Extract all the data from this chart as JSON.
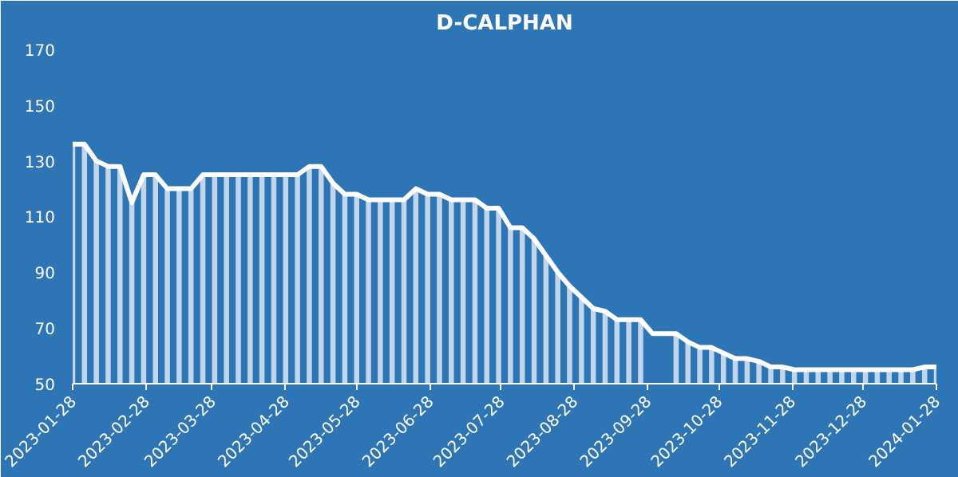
{
  "chart_data": {
    "type": "bar",
    "title": "D-CALPHAN",
    "x": [
      "2023-01-28",
      "2023-02-02",
      "2023-02-07",
      "2023-02-12",
      "2023-02-17",
      "2023-02-22",
      "2023-02-27",
      "2023-03-04",
      "2023-03-09",
      "2023-03-14",
      "2023-03-19",
      "2023-03-24",
      "2023-03-29",
      "2023-04-03",
      "2023-04-08",
      "2023-04-13",
      "2023-04-18",
      "2023-04-23",
      "2023-04-28",
      "2023-05-03",
      "2023-05-08",
      "2023-05-13",
      "2023-05-18",
      "2023-05-23",
      "2023-05-28",
      "2023-06-02",
      "2023-06-07",
      "2023-06-12",
      "2023-06-17",
      "2023-06-22",
      "2023-06-27",
      "2023-07-02",
      "2023-07-07",
      "2023-07-12",
      "2023-07-17",
      "2023-07-22",
      "2023-07-27",
      "2023-08-01",
      "2023-08-06",
      "2023-08-11",
      "2023-08-16",
      "2023-08-21",
      "2023-08-26",
      "2023-08-31",
      "2023-09-05",
      "2023-09-10",
      "2023-09-15",
      "2023-09-20",
      "2023-09-25",
      "2023-09-30",
      "2023-10-05",
      "2023-10-10",
      "2023-10-15",
      "2023-10-20",
      "2023-10-25",
      "2023-10-30",
      "2023-11-04",
      "2023-11-09",
      "2023-11-14",
      "2023-11-19",
      "2023-11-24",
      "2023-11-29",
      "2023-12-04",
      "2023-12-09",
      "2023-12-14",
      "2023-12-19",
      "2023-12-24",
      "2023-12-29",
      "2024-01-03",
      "2024-01-08",
      "2024-01-13",
      "2024-01-18",
      "2024-01-23",
      "2024-01-28"
    ],
    "series": [
      {
        "color": "#dce8f5",
        "values": [
          136,
          136,
          130,
          128,
          128,
          115,
          125,
          125,
          120,
          120,
          120,
          125,
          125,
          125,
          125,
          125,
          125,
          125,
          125,
          125,
          128,
          128,
          122,
          118,
          118,
          116,
          116,
          116,
          116,
          120,
          118,
          118,
          116,
          116,
          116,
          113,
          113,
          106,
          106,
          102,
          96,
          90,
          85,
          81,
          77,
          76,
          73,
          73,
          73,
          null,
          null,
          68,
          65,
          63,
          63,
          61,
          59,
          59,
          58,
          56,
          56,
          55,
          55,
          55,
          55,
          55,
          55,
          55,
          55,
          55,
          55,
          55,
          56,
          56
        ]
      },
      {
        "type": "line",
        "color": "#ffffff",
        "values": [
          136,
          136,
          130,
          128,
          128,
          115,
          125,
          125,
          120,
          120,
          120,
          125,
          125,
          125,
          125,
          125,
          125,
          125,
          125,
          125,
          128,
          128,
          122,
          118,
          118,
          116,
          116,
          116,
          116,
          120,
          118,
          118,
          116,
          116,
          116,
          113,
          113,
          106,
          106,
          102,
          96,
          90,
          85,
          81,
          77,
          76,
          73,
          73,
          73,
          68,
          68,
          68,
          65,
          63,
          63,
          61,
          59,
          59,
          58,
          56,
          56,
          55,
          55,
          55,
          55,
          55,
          55,
          55,
          55,
          55,
          55,
          55,
          56,
          56
        ]
      }
    ],
    "xlim": [
      "2023-01-28",
      "2024-01-28"
    ],
    "xticks": [
      "2023-01-28",
      "2023-02-28",
      "2023-03-28",
      "2023-04-28",
      "2023-05-28",
      "2023-06-28",
      "2023-07-28",
      "2023-08-28",
      "2023-09-28",
      "2023-10-28",
      "2023-11-28",
      "2023-12-28",
      "2024-01-28"
    ],
    "ylim": [
      50,
      172
    ],
    "yticks": [
      50,
      70,
      90,
      110,
      130,
      150,
      170
    ],
    "grid": false
  }
}
